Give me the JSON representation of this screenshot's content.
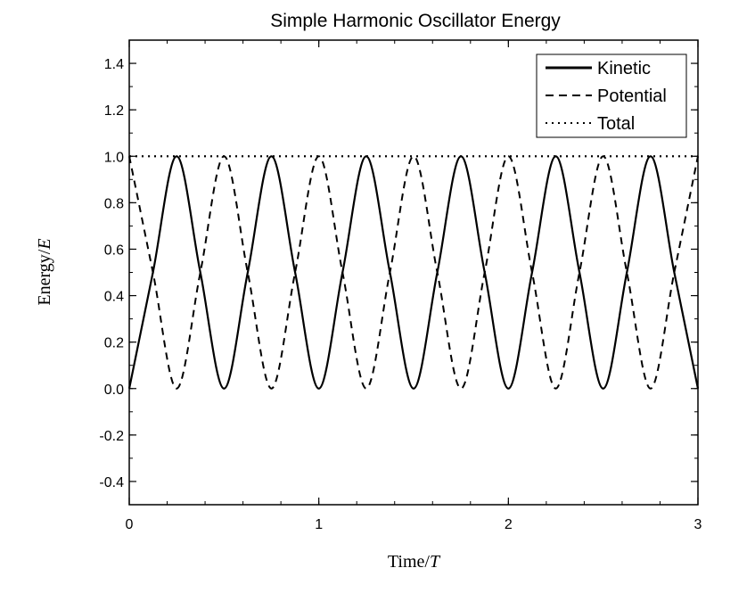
{
  "chart_data": {
    "type": "line",
    "title": "Simple Harmonic Oscillator Energy",
    "xlabel": "Time/T",
    "xlabel_main": "Time/",
    "xlabel_var": "T",
    "ylabel": "Energy/E",
    "ylabel_main": "Energy/",
    "ylabel_var": "E",
    "xlim": [
      0,
      3
    ],
    "ylim": [
      -0.5,
      1.5
    ],
    "x_ticks": [
      0,
      1,
      2,
      3
    ],
    "x_tick_labels": [
      "0",
      "1",
      "2",
      "3"
    ],
    "x_minor_step": 0.2,
    "y_ticks": [
      -0.4,
      -0.2,
      0.0,
      0.2,
      0.4,
      0.6,
      0.8,
      1.0,
      1.2,
      1.4
    ],
    "y_tick_labels": [
      "-0.4",
      "-0.2",
      "0.0",
      "0.2",
      "0.4",
      "0.6",
      "0.8",
      "1.0",
      "1.2",
      "1.4"
    ],
    "y_minor_step": 0.1,
    "grid": false,
    "legend_position": "top-right",
    "x": [
      0,
      0.125,
      0.25,
      0.375,
      0.5,
      0.625,
      0.75,
      0.875,
      1,
      1.125,
      1.25,
      1.375,
      1.5,
      1.625,
      1.75,
      1.875,
      2,
      2.125,
      2.25,
      2.375,
      2.5,
      2.625,
      2.75,
      2.875,
      3
    ],
    "series": [
      {
        "name": "Kinetic",
        "style": "solid",
        "values": [
          0,
          0.5,
          1,
          0.5,
          0,
          0.5,
          1,
          0.5,
          0,
          0.5,
          1,
          0.5,
          0,
          0.5,
          1,
          0.5,
          0,
          0.5,
          1,
          0.5,
          0,
          0.5,
          1,
          0.5,
          0
        ]
      },
      {
        "name": "Potential",
        "style": "dashed",
        "values": [
          1,
          0.5,
          0,
          0.5,
          1,
          0.5,
          0,
          0.5,
          1,
          0.5,
          0,
          0.5,
          1,
          0.5,
          0,
          0.5,
          1,
          0.5,
          0,
          0.5,
          1,
          0.5,
          0,
          0.5,
          1
        ]
      },
      {
        "name": "Total",
        "style": "dotted",
        "values": [
          1,
          1,
          1,
          1,
          1,
          1,
          1,
          1,
          1,
          1,
          1,
          1,
          1,
          1,
          1,
          1,
          1,
          1,
          1,
          1,
          1,
          1,
          1,
          1,
          1
        ]
      }
    ],
    "colors": {
      "line": "#000000",
      "background": "#ffffff"
    }
  }
}
